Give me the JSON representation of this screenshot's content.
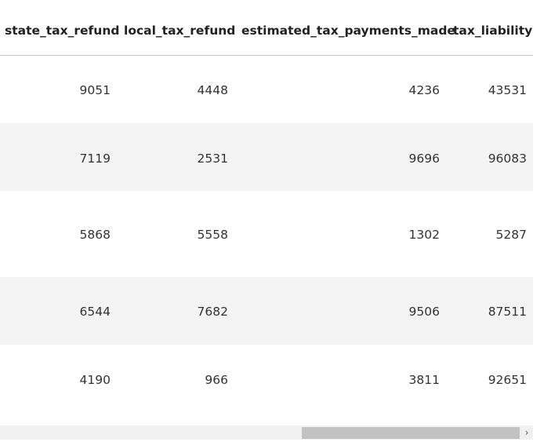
{
  "table": {
    "headers": [
      "state_tax_refund",
      "local_tax_refund",
      "estimated_tax_payments_made",
      "tax_liability"
    ],
    "rows": [
      [
        "9051",
        "4448",
        "4236",
        "43531"
      ],
      [
        "7119",
        "2531",
        "9696",
        "96083"
      ],
      [
        "5868",
        "5558",
        "1302",
        "5287"
      ],
      [
        "6544",
        "7682",
        "9506",
        "87511"
      ],
      [
        "4190",
        "966",
        "3811",
        "92651"
      ]
    ]
  },
  "scrollbar": {
    "right_arrow_glyph": "›",
    "right_arrow_icon": "chevron-right-icon"
  }
}
